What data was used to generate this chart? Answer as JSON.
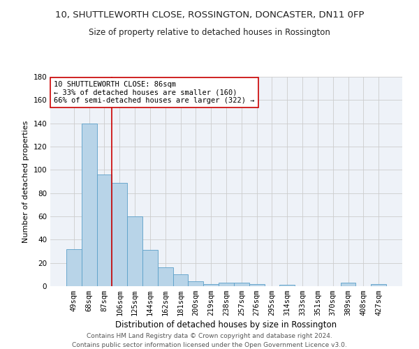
{
  "title1": "10, SHUTTLEWORTH CLOSE, ROSSINGTON, DONCASTER, DN11 0FP",
  "title2": "Size of property relative to detached houses in Rossington",
  "xlabel": "Distribution of detached houses by size in Rossington",
  "ylabel": "Number of detached properties",
  "categories": [
    "49sqm",
    "68sqm",
    "87sqm",
    "106sqm",
    "125sqm",
    "144sqm",
    "162sqm",
    "181sqm",
    "200sqm",
    "219sqm",
    "238sqm",
    "257sqm",
    "276sqm",
    "295sqm",
    "314sqm",
    "333sqm",
    "351sqm",
    "370sqm",
    "389sqm",
    "408sqm",
    "427sqm"
  ],
  "values": [
    32,
    140,
    96,
    89,
    60,
    31,
    16,
    10,
    4,
    2,
    3,
    3,
    2,
    0,
    1,
    0,
    0,
    0,
    3,
    0,
    2
  ],
  "bar_color": "#b8d4e8",
  "bar_edge_color": "#5a9fc8",
  "bar_edge_width": 0.6,
  "red_line_x": 2.5,
  "red_line_color": "#cc0000",
  "annotation_text": "10 SHUTTLEWORTH CLOSE: 86sqm\n← 33% of detached houses are smaller (160)\n66% of semi-detached houses are larger (322) →",
  "annotation_box_color": "#ffffff",
  "annotation_box_edge": "#cc0000",
  "ylim": [
    0,
    180
  ],
  "yticks": [
    0,
    20,
    40,
    60,
    80,
    100,
    120,
    140,
    160,
    180
  ],
  "grid_color": "#cccccc",
  "background_color": "#eef2f8",
  "footer1": "Contains HM Land Registry data © Crown copyright and database right 2024.",
  "footer2": "Contains public sector information licensed under the Open Government Licence v3.0.",
  "title1_fontsize": 9.5,
  "title2_fontsize": 8.5,
  "xlabel_fontsize": 8.5,
  "ylabel_fontsize": 8,
  "tick_fontsize": 7.5,
  "annotation_fontsize": 7.5,
  "footer_fontsize": 6.5
}
